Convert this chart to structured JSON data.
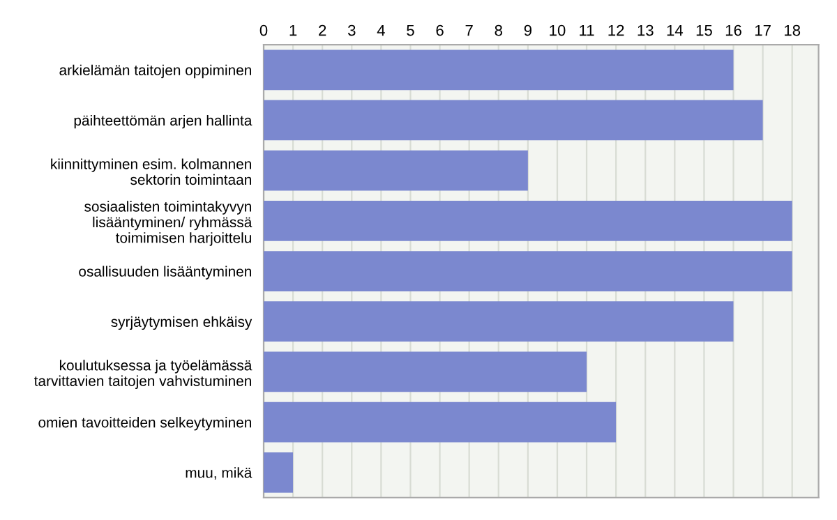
{
  "chart_data": {
    "type": "bar",
    "orientation": "horizontal",
    "categories": [
      "arkielämän taitojen oppiminen",
      "päihteettömän arjen hallinta",
      "kiinnittyminen esim. kolmannen\nsektorin toimintaan",
      "sosiaalisten toimintakyvyn\nlisääntyminen/ ryhmässä\ntoimimisen harjoittelu",
      "osallisuuden lisääntyminen",
      "syrjäytymisen ehkäisy",
      "koulutuksessa ja työelämässä\ntarvittavien taitojen vahvistuminen",
      "omien tavoitteiden selkeytyminen",
      "muu, mikä"
    ],
    "values": [
      16,
      17,
      9,
      18,
      18,
      16,
      11,
      12,
      1
    ],
    "color": "#7b88cf",
    "xlim": [
      0,
      18.9
    ],
    "xticks": [
      0,
      1,
      2,
      3,
      4,
      5,
      6,
      7,
      8,
      9,
      10,
      11,
      12,
      13,
      14,
      15,
      16,
      17,
      18
    ],
    "grid": "x",
    "legend": false
  }
}
